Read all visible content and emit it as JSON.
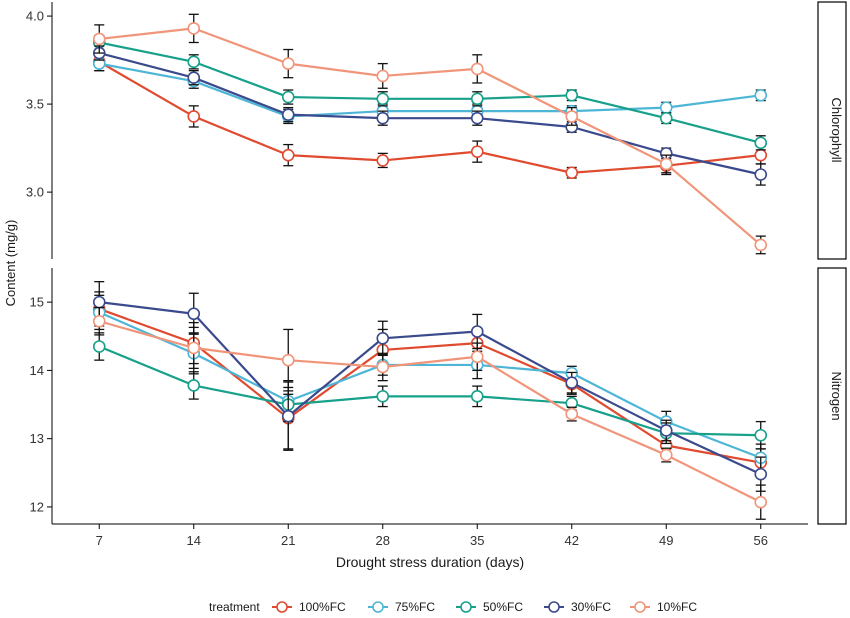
{
  "chart_data": {
    "type": "line",
    "xlabel": "Drought stress duration (days)",
    "ylabel": "Content (mg/g)",
    "x": [
      7,
      14,
      21,
      28,
      35,
      42,
      49,
      56
    ],
    "x_ticks": [
      "7",
      "14",
      "21",
      "28",
      "35",
      "42",
      "49",
      "56"
    ],
    "grid": false,
    "error_bars": true,
    "legend": {
      "title": "treatment",
      "position": "bottom"
    },
    "series_colors": {
      "100%FC": "#E04A2F",
      "75%FC": "#4DB6D6",
      "50%FC": "#17A08A",
      "30%FC": "#3A4A8C",
      "10%FC": "#F0957A"
    },
    "panels": [
      {
        "strip_label": "Chlorophyll",
        "ylim": [
          2.62,
          4.08
        ],
        "y_ticks": [
          "3.0",
          "3.5",
          "4.0"
        ],
        "y_tick_values": [
          3.0,
          3.5,
          4.0
        ],
        "series": [
          {
            "name": "100%FC",
            "values": [
              3.74,
              3.43,
              3.21,
              3.18,
              3.23,
              3.11,
              3.15,
              3.21
            ],
            "errors": [
              0.05,
              0.06,
              0.06,
              0.04,
              0.06,
              0.03,
              0.05,
              0.05
            ]
          },
          {
            "name": "75%FC",
            "values": [
              3.73,
              3.63,
              3.43,
              3.46,
              3.46,
              3.46,
              3.48,
              3.55
            ],
            "errors": [
              0.04,
              0.04,
              0.04,
              0.04,
              0.04,
              0.03,
              0.03,
              0.03
            ]
          },
          {
            "name": "50%FC",
            "values": [
              3.85,
              3.74,
              3.54,
              3.53,
              3.53,
              3.55,
              3.42,
              3.28
            ],
            "errors": [
              0.04,
              0.04,
              0.04,
              0.04,
              0.04,
              0.03,
              0.03,
              0.04
            ]
          },
          {
            "name": "30%FC",
            "values": [
              3.79,
              3.65,
              3.44,
              3.42,
              3.42,
              3.37,
              3.22,
              3.1
            ],
            "errors": [
              0.04,
              0.04,
              0.04,
              0.04,
              0.04,
              0.03,
              0.03,
              0.06
            ]
          },
          {
            "name": "10%FC",
            "values": [
              3.87,
              3.93,
              3.73,
              3.66,
              3.7,
              3.43,
              3.16,
              2.7
            ],
            "errors": [
              0.08,
              0.08,
              0.08,
              0.07,
              0.08,
              0.05,
              0.05,
              0.05
            ]
          }
        ]
      },
      {
        "strip_label": "Nitrogen",
        "ylim": [
          11.75,
          15.5
        ],
        "y_ticks": [
          "12",
          "13",
          "14",
          "15"
        ],
        "y_tick_values": [
          12,
          13,
          14,
          15
        ],
        "series": [
          {
            "name": "100%FC",
            "values": [
              14.9,
              14.4,
              13.3,
              14.3,
              14.4,
              13.8,
              12.9,
              12.65
            ],
            "errors": [
              0.25,
              0.3,
              0.45,
              0.3,
              0.2,
              0.15,
              0.15,
              0.2
            ]
          },
          {
            "name": "75%FC",
            "values": [
              14.85,
              14.25,
              13.55,
              14.08,
              14.08,
              13.96,
              13.25,
              12.72
            ],
            "errors": [
              0.25,
              0.3,
              0.3,
              0.15,
              0.2,
              0.1,
              0.15,
              0.2
            ]
          },
          {
            "name": "50%FC",
            "values": [
              14.35,
              13.78,
              13.5,
              13.62,
              13.62,
              13.52,
              13.08,
              13.05
            ],
            "errors": [
              0.2,
              0.2,
              0.15,
              0.15,
              0.15,
              0.1,
              0.15,
              0.2
            ]
          },
          {
            "name": "30%FC",
            "values": [
              15.0,
              14.83,
              13.33,
              14.47,
              14.57,
              13.82,
              13.12,
              12.48
            ],
            "errors": [
              0.3,
              0.3,
              0.5,
              0.25,
              0.25,
              0.15,
              0.15,
              0.25
            ]
          },
          {
            "name": "10%FC",
            "values": [
              14.72,
              14.33,
              14.15,
              14.05,
              14.2,
              13.36,
              12.76,
              12.07
            ],
            "errors": [
              0.2,
              0.3,
              0.45,
              0.2,
              0.2,
              0.1,
              0.1,
              0.25
            ]
          }
        ]
      }
    ]
  }
}
